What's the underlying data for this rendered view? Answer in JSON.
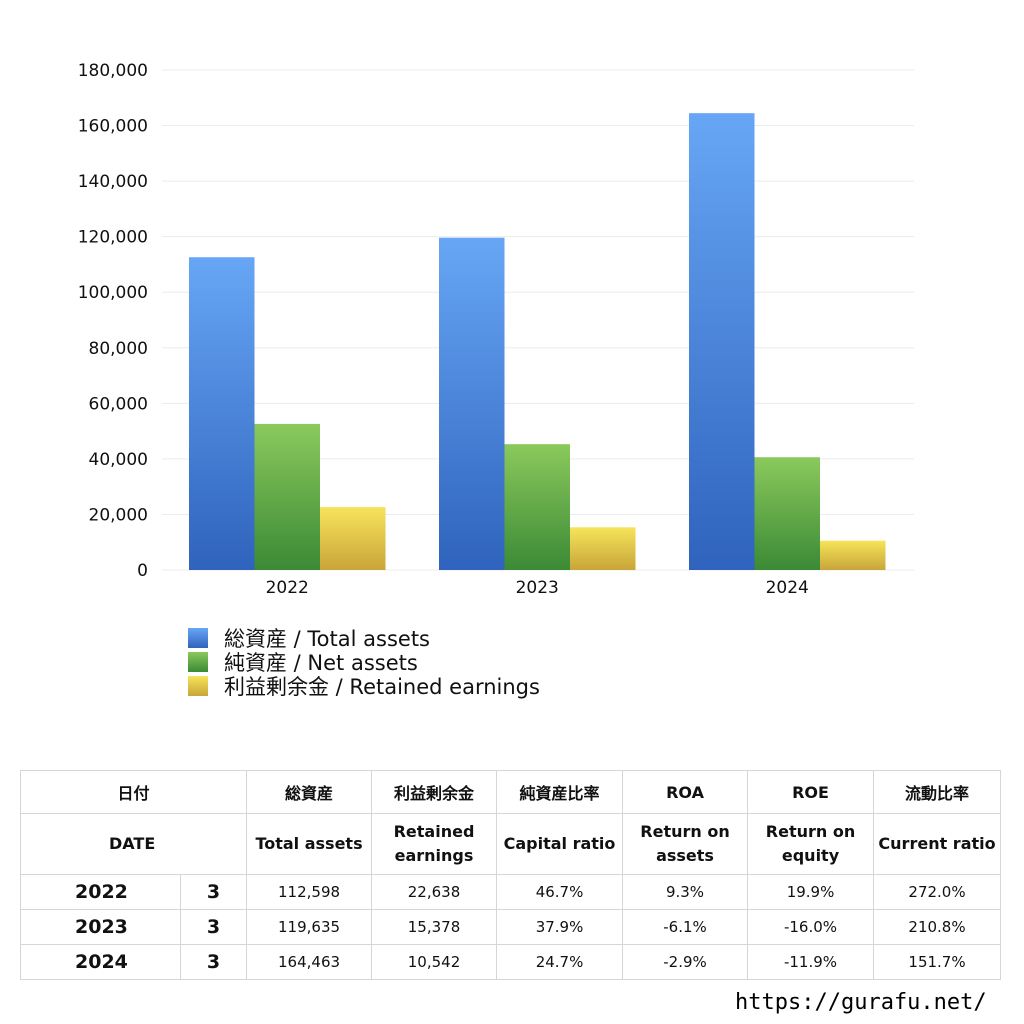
{
  "chart_data": {
    "type": "bar",
    "categories": [
      "2022",
      "2023",
      "2024"
    ],
    "ylim": [
      0,
      180000
    ],
    "yticks": [
      0,
      20000,
      40000,
      60000,
      80000,
      100000,
      120000,
      140000,
      160000,
      180000
    ],
    "ytick_labels": [
      "0",
      "20,000",
      "40,000",
      "60,000",
      "80,000",
      "100,000",
      "120,000",
      "140,000",
      "160,000",
      "180,000"
    ],
    "grid": true,
    "legend_position": "bottom-left",
    "series": [
      {
        "name": "総資産 / Total assets",
        "values": [
          112598,
          119635,
          164463
        ],
        "color_top": "#67a6f5",
        "color_bottom": "#2f63bd"
      },
      {
        "name": "純資産 / Net assets",
        "values": [
          52600,
          45300,
          40600
        ],
        "color_top": "#8bc95c",
        "color_bottom": "#3b8a36"
      },
      {
        "name": "利益剰余金 / Retained earnings",
        "values": [
          22638,
          15378,
          10542
        ],
        "color_top": "#f6e45a",
        "color_bottom": "#c8a539"
      }
    ]
  },
  "table": {
    "headers_jp": [
      "日付",
      "総資産",
      "利益剰余金",
      "純資産比率",
      "ROA",
      "ROE",
      "流動比率"
    ],
    "headers_en": [
      "DATE",
      "Total assets",
      "Retained\nearnings",
      "Capital ratio",
      "Return on\nassets",
      "Return on\nequity",
      "Current ratio"
    ],
    "rows": [
      {
        "year": "2022",
        "month": "3",
        "total_assets": "112,598",
        "retained": "22,638",
        "capital_ratio": "46.7%",
        "roa": "9.3%",
        "roe": "19.9%",
        "current_ratio": "272.0%",
        "roa_negative": false,
        "roe_negative": false
      },
      {
        "year": "2023",
        "month": "3",
        "total_assets": "119,635",
        "retained": "15,378",
        "capital_ratio": "37.9%",
        "roa": "-6.1%",
        "roe": "-16.0%",
        "current_ratio": "210.8%",
        "roa_negative": true,
        "roe_negative": true
      },
      {
        "year": "2024",
        "month": "3",
        "total_assets": "164,463",
        "retained": "10,542",
        "capital_ratio": "24.7%",
        "roa": "-2.9%",
        "roe": "-11.9%",
        "current_ratio": "151.7%",
        "roa_negative": true,
        "roe_negative": true
      }
    ],
    "negative_color": "#e0472a"
  },
  "source_url": "https://gurafu.net/"
}
